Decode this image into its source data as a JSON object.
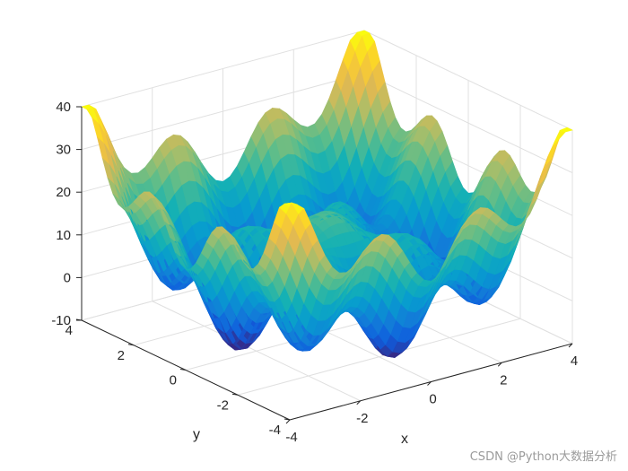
{
  "chart_data": {
    "type": "surface",
    "xlabel": "x",
    "ylabel": "y",
    "zlabel": "",
    "xlim": [
      -4,
      4
    ],
    "ylim": [
      -4,
      4
    ],
    "zlim": [
      -10,
      40
    ],
    "xticks": [
      "-4",
      "-2",
      "0",
      "2",
      "4"
    ],
    "yticks": [
      "-4",
      "-2",
      "0",
      "2",
      "4"
    ],
    "zticks": [
      "-10",
      "0",
      "10",
      "20",
      "30",
      "40"
    ],
    "colormap": "parula",
    "grid": true,
    "surface": {
      "grid_step": 0.2,
      "peak_z": 38,
      "bottom_z": -8,
      "corner_z": 30
    }
  },
  "watermark": "CSDN @Python大数据分析",
  "colors": {
    "axis": "#262626",
    "grid": "#e0e0e0",
    "background": "#ffffff"
  }
}
